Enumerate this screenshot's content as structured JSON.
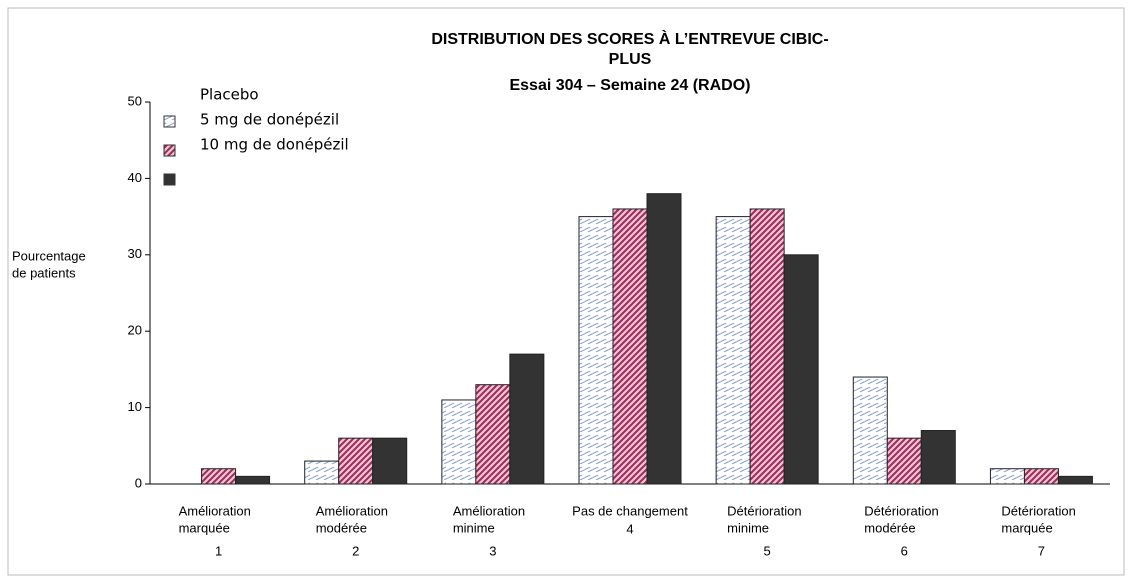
{
  "chart_data": {
    "type": "bar",
    "title": [
      "DISTRIBUTION DES SCORES À L’ENTREVUE CIBIC-",
      "PLUS",
      "Essai 304 – Semaine 24 (RADO)"
    ],
    "y_label": [
      "Pourcentage",
      "de patients"
    ],
    "categories": [
      [
        "Amélioration",
        "marquée"
      ],
      [
        "Amélioration",
        "modérée"
      ],
      [
        "Amélioration",
        "minime"
      ],
      [
        "Pas de changement"
      ],
      [
        "Détérioration",
        "minime"
      ],
      [
        "Détérioration",
        "modérée"
      ],
      [
        "Détérioration",
        "marquée"
      ]
    ],
    "category_codes": [
      "1",
      "2",
      "3",
      "4",
      "5",
      "6",
      "7"
    ],
    "series": [
      {
        "name": "Placebo",
        "color": "#c8d4f0",
        "values": [
          0,
          3,
          11,
          35,
          35,
          14,
          2
        ]
      },
      {
        "name": "5 mg de donépézil",
        "color": "#b0406a",
        "values": [
          2,
          6,
          13,
          36,
          36,
          6,
          2
        ]
      },
      {
        "name": "10 mg de donépézil",
        "color": "#333333",
        "values": [
          1,
          6,
          17,
          38,
          30,
          7,
          1
        ]
      }
    ],
    "ylim": [
      0,
      50
    ],
    "yticks": [
      0,
      10,
      20,
      30,
      40,
      50
    ],
    "grid": false
  }
}
